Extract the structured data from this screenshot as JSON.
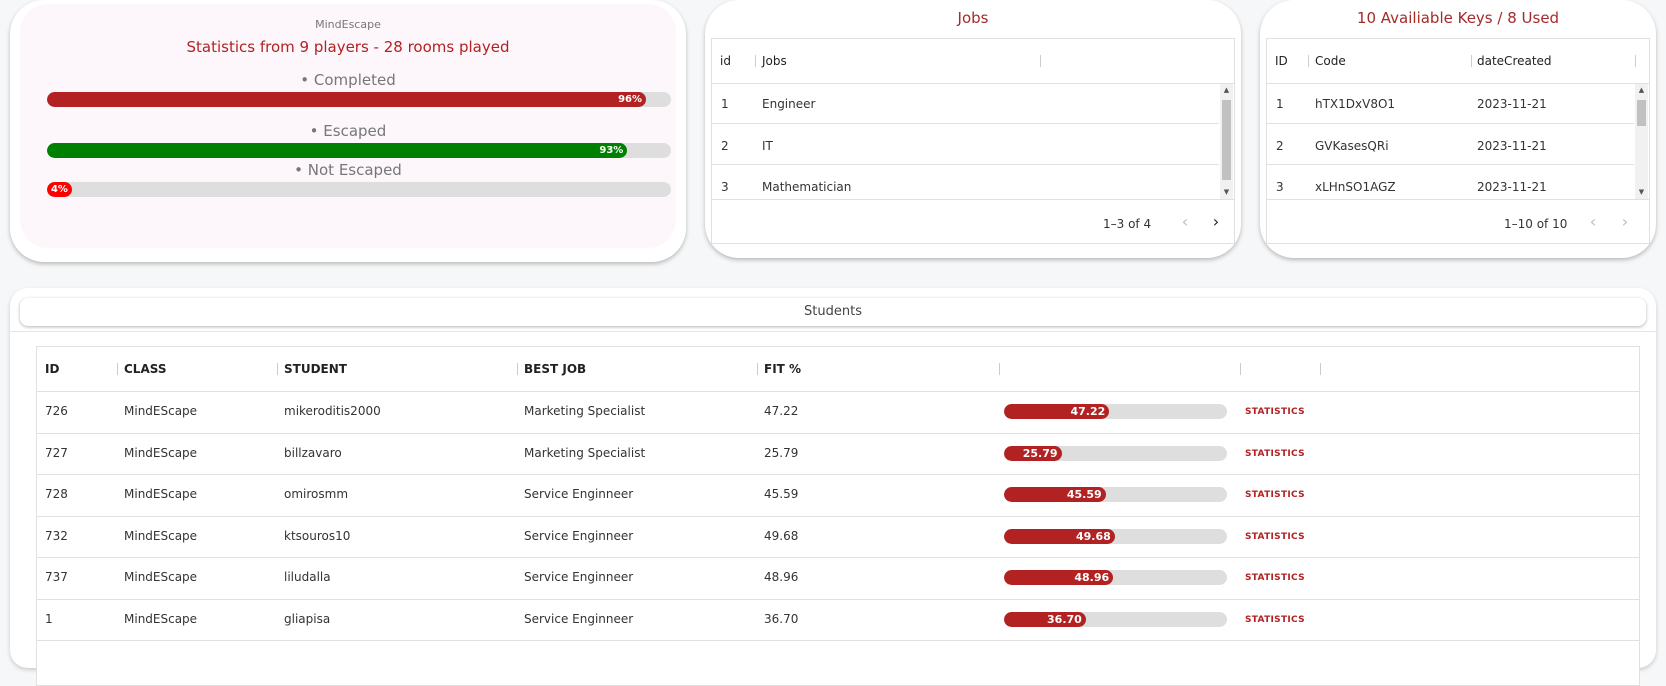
{
  "stats": {
    "brand": "MindEscape",
    "title": "Statistics from 9 players - 28 rooms played",
    "bars": [
      {
        "label": "Completed",
        "percent": 96,
        "percent_text": "96%",
        "color": "#b22222"
      },
      {
        "label": "Escaped",
        "percent": 93,
        "percent_text": "93%",
        "color": "#008000"
      },
      {
        "label": "Not Escaped",
        "percent": 4,
        "percent_text": "4%",
        "color": "#ff0000"
      }
    ]
  },
  "jobs": {
    "title": "Jobs",
    "columns": [
      "id",
      "Jobs"
    ],
    "rows": [
      {
        "id": "1",
        "job": "Engineer"
      },
      {
        "id": "2",
        "job": "IT"
      },
      {
        "id": "3",
        "job": "Mathematician"
      }
    ],
    "pagination": "1–3 of 4"
  },
  "keys": {
    "title": "10 Availiable Keys / 8 Used",
    "columns": [
      "ID",
      "Code",
      "dateCreated"
    ],
    "rows": [
      {
        "id": "1",
        "code": "hTX1DxV8O1",
        "date": "2023-11-21"
      },
      {
        "id": "2",
        "code": "GVKasesQRi",
        "date": "2023-11-21"
      },
      {
        "id": "3",
        "code": "xLHnSO1AGZ",
        "date": "2023-11-21"
      }
    ],
    "pagination": "1–10 of 10"
  },
  "students": {
    "title": "Students",
    "columns": [
      "ID",
      "CLASS",
      "STUDENT",
      "BEST JOB",
      "FIT %"
    ],
    "action_label": "STATISTICS",
    "rows": [
      {
        "id": "726",
        "class": "MindEScape",
        "student": "mikeroditis2000",
        "best_job": "Marketing Specialist",
        "fit": "47.22",
        "fit_value": 47.22
      },
      {
        "id": "727",
        "class": "MindEScape",
        "student": "billzavaro",
        "best_job": "Marketing Specialist",
        "fit": "25.79",
        "fit_value": 25.79
      },
      {
        "id": "728",
        "class": "MindEScape",
        "student": "omirosmm",
        "best_job": "Service Enginneer",
        "fit": "45.59",
        "fit_value": 45.59
      },
      {
        "id": "732",
        "class": "MindEScape",
        "student": "ktsouros10",
        "best_job": "Service Enginneer",
        "fit": "49.68",
        "fit_value": 49.68
      },
      {
        "id": "737",
        "class": "MindEScape",
        "student": "liludalla",
        "best_job": "Service Enginneer",
        "fit": "48.96",
        "fit_value": 48.96
      },
      {
        "id": "1",
        "class": "MindEScape",
        "student": "gliapisa",
        "best_job": "Service Enginneer",
        "fit": "36.70",
        "fit_value": 36.7
      }
    ]
  },
  "icons": {
    "prev": "chevron-left-icon",
    "next": "chevron-right-icon",
    "scroll_up": "triangle-up-icon",
    "scroll_down": "triangle-down-icon"
  }
}
